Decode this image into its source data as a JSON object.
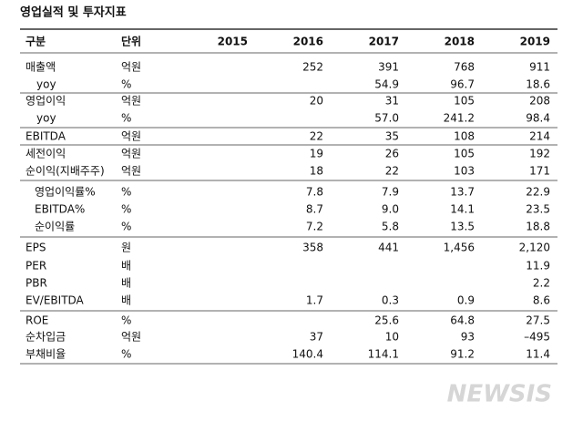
{
  "header": {
    "title": "영업실적 및 투자지표"
  },
  "table": {
    "columns": [
      "구분",
      "단위",
      "2015",
      "2016",
      "2017",
      "2018",
      "2019"
    ],
    "rows": [
      [
        "매출액",
        "억원",
        null,
        "252",
        "391",
        "768",
        "911"
      ],
      [
        "yoy",
        "%",
        null,
        null,
        "54.9",
        "96.7",
        "18.6"
      ],
      [
        "영업이익",
        "억원",
        null,
        "20",
        "31",
        "105",
        "208"
      ],
      [
        "yoy",
        "%",
        null,
        null,
        "57.0",
        "241.2",
        "98.4"
      ],
      [
        "EBITDA",
        "억원",
        null,
        "22",
        "35",
        "108",
        "214"
      ],
      [
        "세전이익",
        "억원",
        null,
        "19",
        "26",
        "105",
        "192"
      ],
      [
        "순이익(지배주주)",
        "억원",
        null,
        "18",
        "22",
        "103",
        "171"
      ],
      [
        "영업이익률%",
        "%",
        null,
        "7.8",
        "7.9",
        "13.7",
        "22.9"
      ],
      [
        "EBITDA%",
        "%",
        null,
        "8.7",
        "9.0",
        "14.1",
        "23.5"
      ],
      [
        "순이익률",
        "%",
        null,
        "7.2",
        "5.8",
        "13.5",
        "18.8"
      ],
      [
        "EPS",
        "원",
        null,
        "358",
        "441",
        "1,456",
        "2,120"
      ],
      [
        "PER",
        "배",
        null,
        null,
        null,
        null,
        "11.9"
      ],
      [
        "PBR",
        "배",
        null,
        null,
        null,
        null,
        "2.2"
      ],
      [
        "EV/EBITDA",
        "배",
        null,
        "1.7",
        "0.3",
        "0.9",
        "8.6"
      ],
      [
        "ROE",
        "%",
        null,
        null,
        "25.6",
        "64.8",
        "27.5"
      ],
      [
        "순차입금",
        "억원",
        null,
        "37",
        "10",
        "93",
        "–495"
      ],
      [
        "부채비율",
        "%",
        null,
        "140.4",
        "114.1",
        "91.2",
        "11.4"
      ]
    ]
  },
  "watermark": "NEWSIS"
}
